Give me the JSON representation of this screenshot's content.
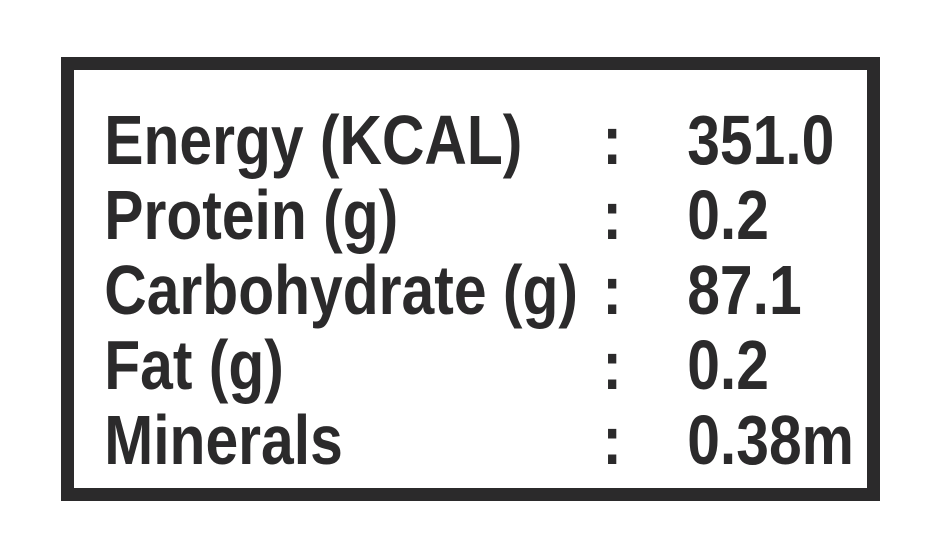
{
  "label": {
    "colors": {
      "ink": "#2b2a2b",
      "background": "#ffffff"
    },
    "colon": ":",
    "rows": [
      {
        "label": "Energy (KCAL)",
        "value": "351.0"
      },
      {
        "label": "Protein (g)",
        "value": "0.2"
      },
      {
        "label": "Carbohydrate (g)",
        "value": "87.1"
      },
      {
        "label": "Fat (g)",
        "value": "0.2"
      },
      {
        "label": "Minerals",
        "value": "0.38m"
      }
    ]
  }
}
